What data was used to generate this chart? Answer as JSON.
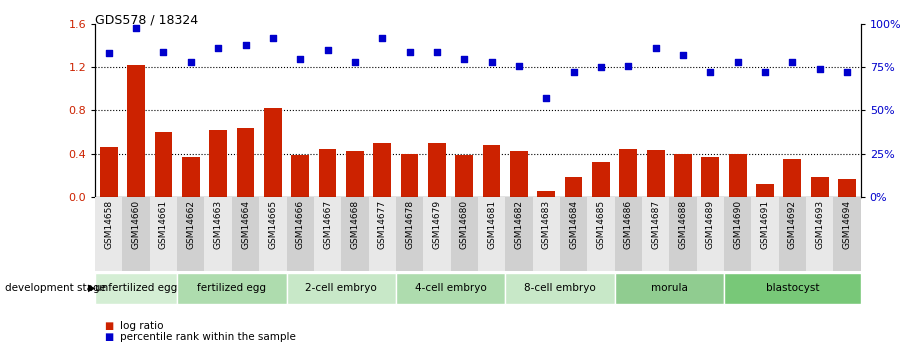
{
  "title": "GDS578 / 18324",
  "samples": [
    "GSM14658",
    "GSM14660",
    "GSM14661",
    "GSM14662",
    "GSM14663",
    "GSM14664",
    "GSM14665",
    "GSM14666",
    "GSM14667",
    "GSM14668",
    "GSM14677",
    "GSM14678",
    "GSM14679",
    "GSM14680",
    "GSM14681",
    "GSM14682",
    "GSM14683",
    "GSM14684",
    "GSM14685",
    "GSM14686",
    "GSM14687",
    "GSM14688",
    "GSM14689",
    "GSM14690",
    "GSM14691",
    "GSM14692",
    "GSM14693",
    "GSM14694"
  ],
  "log_ratio": [
    0.46,
    1.22,
    0.6,
    0.37,
    0.62,
    0.64,
    0.82,
    0.39,
    0.44,
    0.42,
    0.5,
    0.4,
    0.5,
    0.39,
    0.48,
    0.42,
    0.05,
    0.18,
    0.32,
    0.44,
    0.43,
    0.4,
    0.37,
    0.4,
    0.12,
    0.35,
    0.18,
    0.16
  ],
  "percentile": [
    83,
    98,
    84,
    78,
    86,
    88,
    92,
    80,
    85,
    78,
    92,
    84,
    84,
    80,
    78,
    76,
    57,
    72,
    75,
    76,
    86,
    82,
    72,
    78,
    72,
    78,
    74,
    72
  ],
  "stages": [
    {
      "label": "unfertilized egg",
      "start": 0,
      "end": 3,
      "color": "#d4eed4"
    },
    {
      "label": "fertilized egg",
      "start": 3,
      "end": 7,
      "color": "#aedcae"
    },
    {
      "label": "2-cell embryo",
      "start": 7,
      "end": 11,
      "color": "#c8e8c8"
    },
    {
      "label": "4-cell embryo",
      "start": 11,
      "end": 15,
      "color": "#aedcae"
    },
    {
      "label": "8-cell embryo",
      "start": 15,
      "end": 19,
      "color": "#c8e8c8"
    },
    {
      "label": "morula",
      "start": 19,
      "end": 23,
      "color": "#90cc90"
    },
    {
      "label": "blastocyst",
      "start": 23,
      "end": 28,
      "color": "#78c878"
    }
  ],
  "bar_color": "#cc2200",
  "scatter_color": "#0000cc",
  "ylim_left": [
    0,
    1.6
  ],
  "ylim_right": [
    0,
    100
  ],
  "yticks_left": [
    0,
    0.4,
    0.8,
    1.2,
    1.6
  ],
  "yticks_right": [
    0,
    25,
    50,
    75,
    100
  ],
  "grid_vals": [
    0.4,
    0.8,
    1.2
  ],
  "dev_stage_label": "development stage",
  "legend_log": "log ratio",
  "legend_pct": "percentile rank within the sample",
  "bg_grey": "#d8d8d8"
}
